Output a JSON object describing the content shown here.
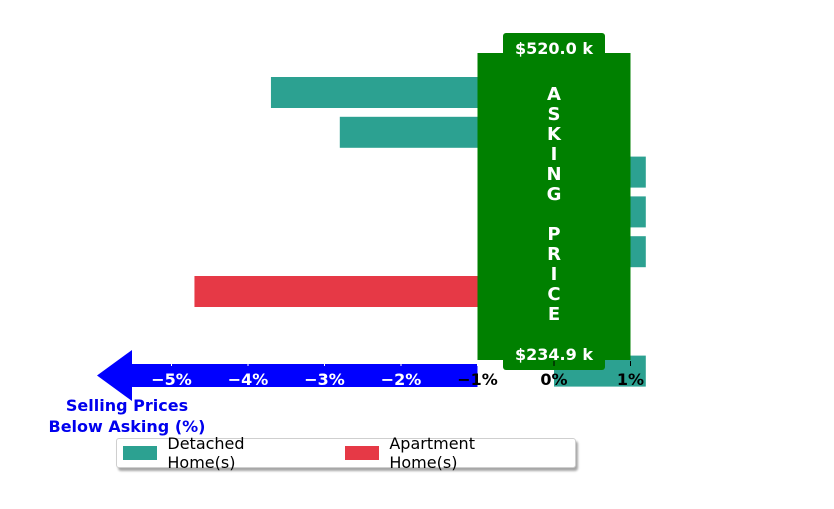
{
  "chart_data": {
    "type": "bar",
    "orientation": "horizontal",
    "x_unit": "%",
    "xlim": [
      -5.7,
      1.2
    ],
    "xticks": [
      -5,
      -4,
      -3,
      -2,
      -1,
      0,
      1
    ],
    "xtick_labels": [
      "−5%",
      "−4%",
      "−3%",
      "−2%",
      "−1%",
      "0%",
      "1%"
    ],
    "axis_caption": [
      "Selling Prices",
      "Below Asking (%)"
    ],
    "asking_price": {
      "letters": [
        "A",
        "S",
        "K",
        "I",
        "N",
        "G",
        "",
        "P",
        "R",
        "I",
        "C",
        "E"
      ],
      "top_label": "$520.0 k",
      "bottom_label": "$234.9 k",
      "x_range": [
        -1,
        1
      ]
    },
    "series": [
      {
        "name": "Detached Home(s)",
        "color": "#2ca191"
      },
      {
        "name": "Apartment Home(s)",
        "color": "#e63946"
      }
    ],
    "bars": [
      {
        "series": 0,
        "value": -3.7
      },
      {
        "series": 0,
        "value": -2.8
      },
      {
        "series": 0,
        "value": 1.2
      },
      {
        "series": 0,
        "value": 1.2
      },
      {
        "series": 0,
        "value": 1.2
      },
      {
        "series": 1,
        "value": -4.7
      },
      {
        "series": 0,
        "value": 0
      },
      {
        "series": 0,
        "value": 1.2
      }
    ],
    "colors": {
      "asking_box": "#008000",
      "arrow": "#0000ff",
      "caption": "#0000ee"
    },
    "legend": {
      "placement": "bottom",
      "shadow": true
    }
  }
}
